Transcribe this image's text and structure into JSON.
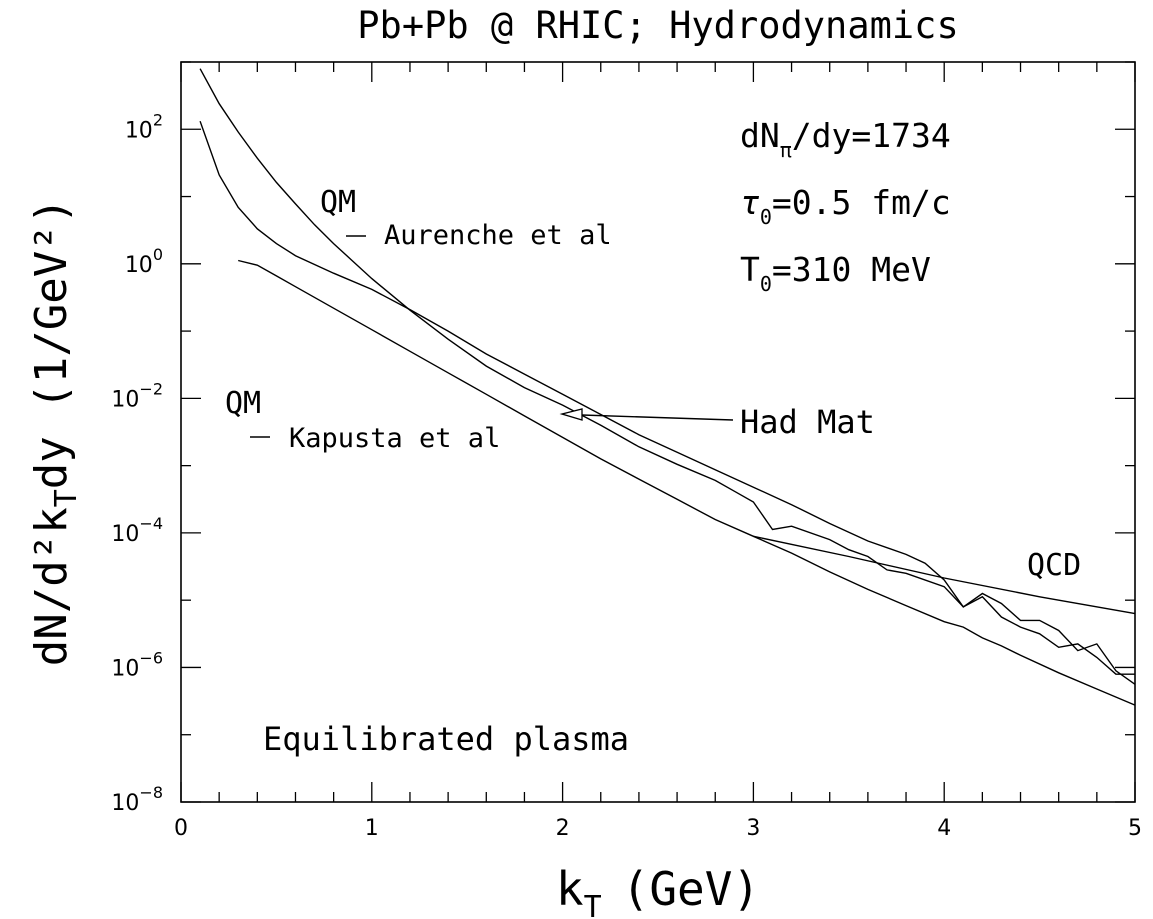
{
  "chart_data": {
    "type": "line",
    "title": "Pb+Pb @ RHIC; Hydrodynamics",
    "xlabel": "k",
    "xlabel_sub": "T",
    "xlabel_unit": "(GeV)",
    "ylabel": "dN/d²k",
    "ylabel_sub": "T",
    "ylabel_tail": "dy (1/GeV²)",
    "xlim": [
      0,
      5
    ],
    "ylim_log10": [
      -8,
      3
    ],
    "y_scale": "log",
    "grid": false,
    "x_ticks": [
      {
        "v": 0,
        "label": "0"
      },
      {
        "v": 1,
        "label": "1"
      },
      {
        "v": 2,
        "label": "2"
      },
      {
        "v": 3,
        "label": "3"
      },
      {
        "v": 4,
        "label": "4"
      },
      {
        "v": 5,
        "label": "5"
      }
    ],
    "y_ticks": [
      {
        "e": 2,
        "base": "10",
        "exp": "2"
      },
      {
        "e": 0,
        "base": "10",
        "exp": "0"
      },
      {
        "e": -2,
        "base": "10",
        "exp": "−2"
      },
      {
        "e": -4,
        "base": "10",
        "exp": "−4"
      },
      {
        "e": -6,
        "base": "10",
        "exp": "−6"
      },
      {
        "e": -8,
        "base": "10",
        "exp": "−8"
      }
    ],
    "series": [
      {
        "label": "QM Aurenche et al",
        "x": [
          0.1,
          0.2,
          0.3,
          0.4,
          0.5,
          0.6,
          0.7,
          0.8,
          0.9,
          1.0,
          1.2,
          1.4,
          1.6,
          1.8,
          2.0,
          2.2,
          2.4,
          2.6,
          2.8,
          2.9,
          3.0,
          3.1,
          3.2,
          3.4,
          3.5,
          3.6,
          3.7,
          3.8,
          4.0,
          4.1,
          4.2,
          4.3,
          4.4,
          4.5,
          4.6,
          4.7,
          4.8,
          4.9,
          5.0
        ],
        "log10_y": [
          2.9,
          2.38,
          1.96,
          1.57,
          1.21,
          0.89,
          0.58,
          0.3,
          0.04,
          -0.22,
          -0.69,
          -1.12,
          -1.52,
          -1.84,
          -2.1,
          -2.4,
          -2.72,
          -2.98,
          -3.22,
          -3.38,
          -3.54,
          -3.95,
          -3.9,
          -4.1,
          -4.25,
          -4.35,
          -4.55,
          -4.6,
          -4.8,
          -5.1,
          -4.95,
          -5.25,
          -5.4,
          -5.5,
          -5.7,
          -5.65,
          -5.85,
          -6.1,
          -6.1
        ]
      },
      {
        "label": "QM Kapusta et al",
        "x": [
          0.1,
          0.2,
          0.3,
          0.4,
          0.5,
          0.6,
          0.8,
          1.0,
          1.2,
          1.4,
          1.6,
          1.8,
          2.0,
          2.2,
          2.4,
          2.6,
          2.8,
          3.0,
          3.2,
          3.4,
          3.6,
          3.8,
          3.9,
          4.0,
          4.1,
          4.2,
          4.3,
          4.4,
          4.5,
          4.6,
          4.7,
          4.8,
          4.9,
          5.0
        ],
        "log10_y": [
          2.12,
          1.32,
          0.84,
          0.52,
          0.3,
          0.12,
          -0.14,
          -0.38,
          -0.68,
          -1.0,
          -1.34,
          -1.64,
          -1.94,
          -2.24,
          -2.54,
          -2.8,
          -3.06,
          -3.32,
          -3.58,
          -3.86,
          -4.12,
          -4.32,
          -4.45,
          -4.7,
          -5.1,
          -4.9,
          -5.05,
          -5.3,
          -5.3,
          -5.45,
          -5.75,
          -5.65,
          -6.05,
          -6.25
        ]
      },
      {
        "label": "Had Mat",
        "x": [
          0.3,
          0.4,
          0.5,
          0.6,
          0.8,
          1.0,
          1.2,
          1.4,
          1.6,
          1.8,
          2.0,
          2.2,
          2.4,
          2.6,
          2.8,
          3.0,
          3.2,
          3.4,
          3.6,
          3.8,
          4.0,
          4.1,
          4.2,
          4.3,
          4.4,
          4.6,
          4.8,
          5.0
        ],
        "log10_y": [
          0.05,
          -0.02,
          -0.18,
          -0.34,
          -0.66,
          -0.98,
          -1.3,
          -1.62,
          -1.94,
          -2.26,
          -2.58,
          -2.9,
          -3.2,
          -3.5,
          -3.8,
          -4.05,
          -4.3,
          -4.58,
          -4.84,
          -5.08,
          -5.32,
          -5.4,
          -5.56,
          -5.68,
          -5.82,
          -6.08,
          -6.32,
          -6.56
        ]
      },
      {
        "label": "QCD",
        "x": [
          3.0,
          3.5,
          4.0,
          4.5,
          5.0
        ],
        "log10_y": [
          -4.05,
          -4.35,
          -4.67,
          -4.95,
          -5.2
        ]
      }
    ],
    "annotations": {
      "qm_top": "QM",
      "aurenche": "Aurenche et al",
      "qm_bottom": "QM",
      "kapusta": "Kapusta et al",
      "had_mat": "Had Mat",
      "qcd": "QCD",
      "equilibrated": "Equilibrated plasma",
      "param1_base": "dN",
      "param1_sub": "π",
      "param1_tail": "/dy=1734",
      "param2_base": "τ",
      "param2_sub": "0",
      "param2_tail": "=0.5 fm/c",
      "param3_base": "T",
      "param3_sub": "0",
      "param3_tail": "=310 MeV"
    }
  }
}
